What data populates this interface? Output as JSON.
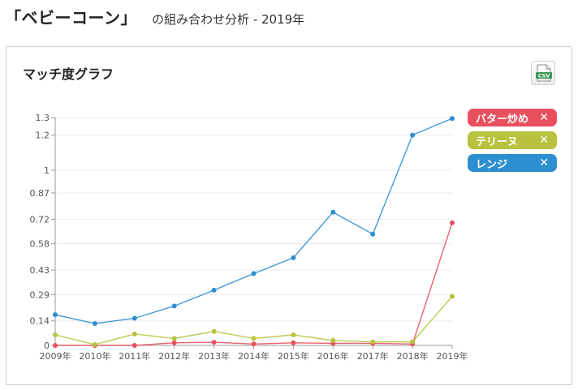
{
  "header": {
    "title": "「ベビーコーン」",
    "subtitle": "の組み合わせ分析 - 2019年"
  },
  "card": {
    "title": "マッチ度グラフ",
    "csv_label": "CSV"
  },
  "legend": [
    {
      "label": "バター炒め",
      "remove": "✕",
      "color": "#e8505e"
    },
    {
      "label": "テリーヌ",
      "remove": "✕",
      "color": "#b8c23e"
    },
    {
      "label": "レンジ",
      "remove": "✕",
      "color": "#2e8fd0"
    }
  ],
  "chart_data": {
    "type": "line",
    "categories": [
      "2009年",
      "2010年",
      "2011年",
      "2012年",
      "2013年",
      "2014年",
      "2015年",
      "2016年",
      "2017年",
      "2018年",
      "2019年"
    ],
    "ytick_labels": [
      "0",
      "0.14",
      "0.29",
      "0.43",
      "0.58",
      "0.72",
      "0.87",
      "1",
      "1.2",
      "1.3"
    ],
    "ylim": [
      0,
      1.3
    ],
    "grid": true,
    "legend_position": "right",
    "series": [
      {
        "name": "バター炒め",
        "color": "#e8505e",
        "values": [
          0,
          0,
          0,
          0.015,
          0.018,
          0.008,
          0.015,
          0.012,
          0.012,
          0.008,
          0.7
        ]
      },
      {
        "name": "テリーヌ",
        "color": "#b8c23e",
        "values": [
          0.06,
          0.005,
          0.065,
          0.04,
          0.08,
          0.04,
          0.06,
          0.028,
          0.02,
          0.02,
          0.28
        ]
      },
      {
        "name": "レンジ",
        "color": "#2e8fd0",
        "values": [
          0.175,
          0.125,
          0.155,
          0.225,
          0.315,
          0.41,
          0.5,
          0.76,
          0.635,
          1.2,
          1.295
        ]
      }
    ]
  }
}
